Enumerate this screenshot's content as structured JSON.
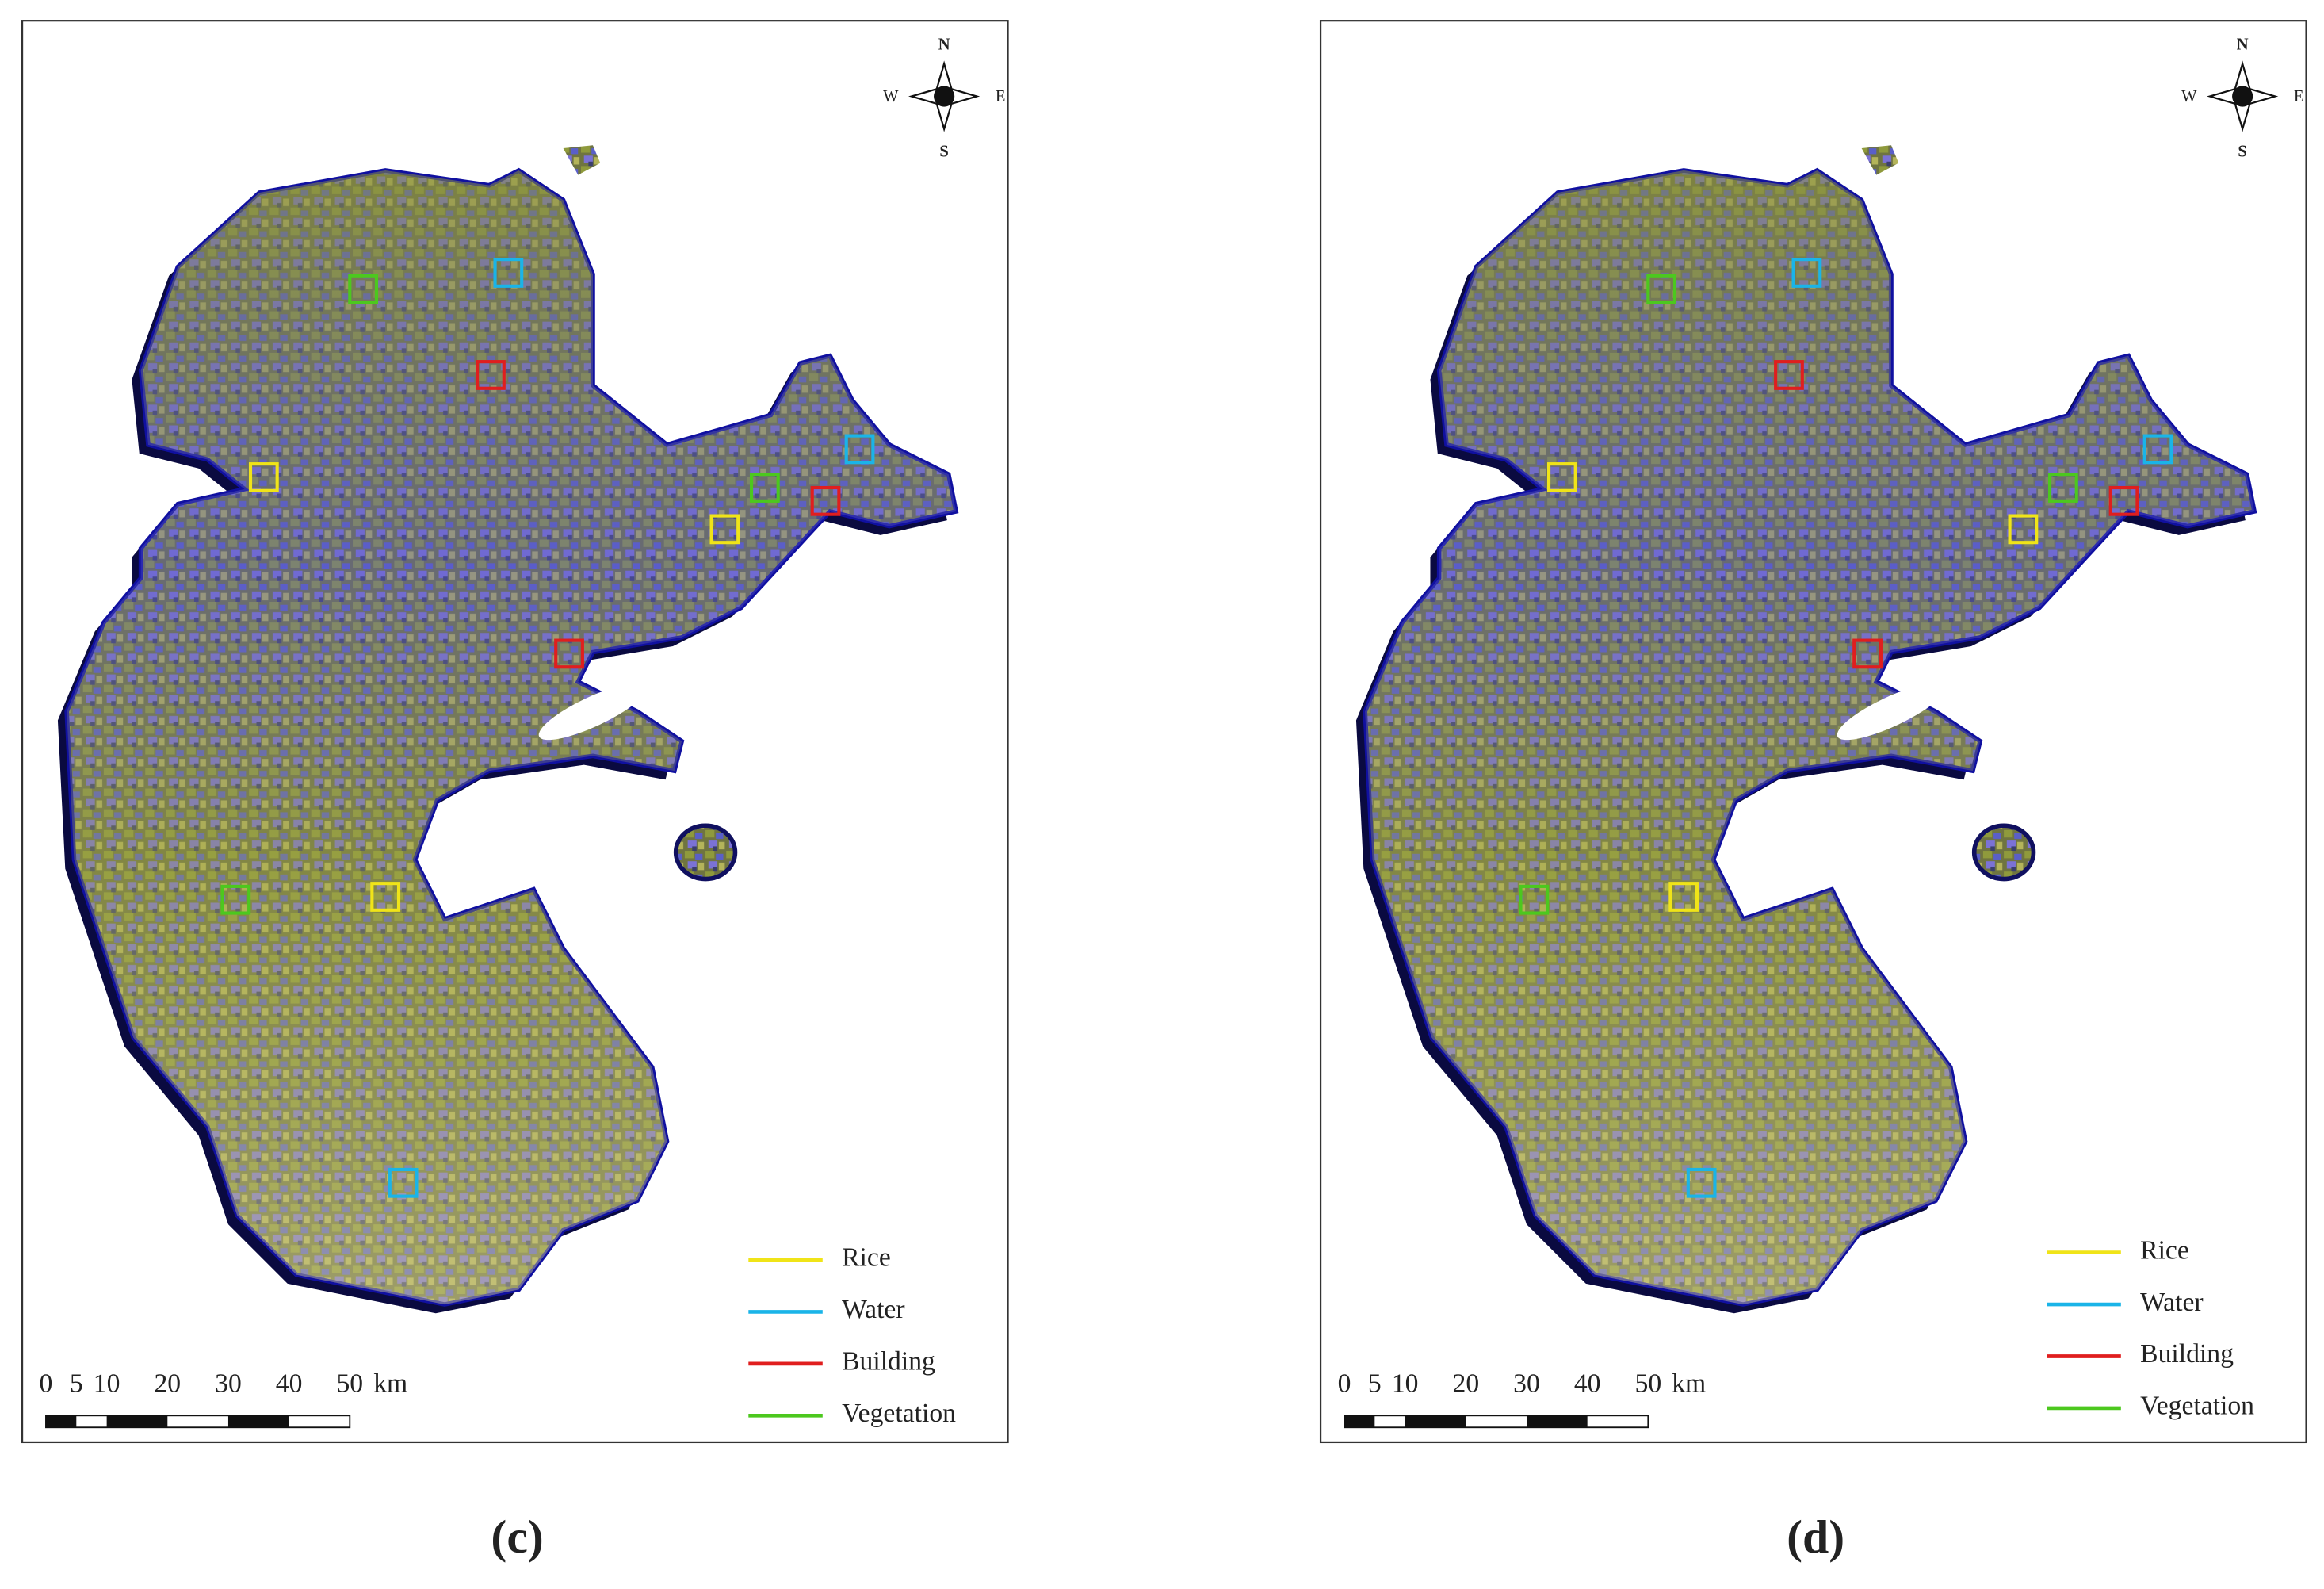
{
  "panels": [
    {
      "label": "(c)"
    },
    {
      "label": "(d)"
    }
  ],
  "compass": {
    "north": "N",
    "south": "S",
    "west": "W",
    "east": "E"
  },
  "legend": [
    {
      "name": "Rice",
      "color": "#f0e418"
    },
    {
      "name": "Water",
      "color": "#1ab4e8"
    },
    {
      "name": "Building",
      "color": "#e01e1e"
    },
    {
      "name": "Vegetation",
      "color": "#4cc81e"
    }
  ],
  "scale_bar": {
    "ticks": [
      0,
      5,
      10,
      20,
      30,
      40,
      50
    ],
    "unit": "km"
  }
}
